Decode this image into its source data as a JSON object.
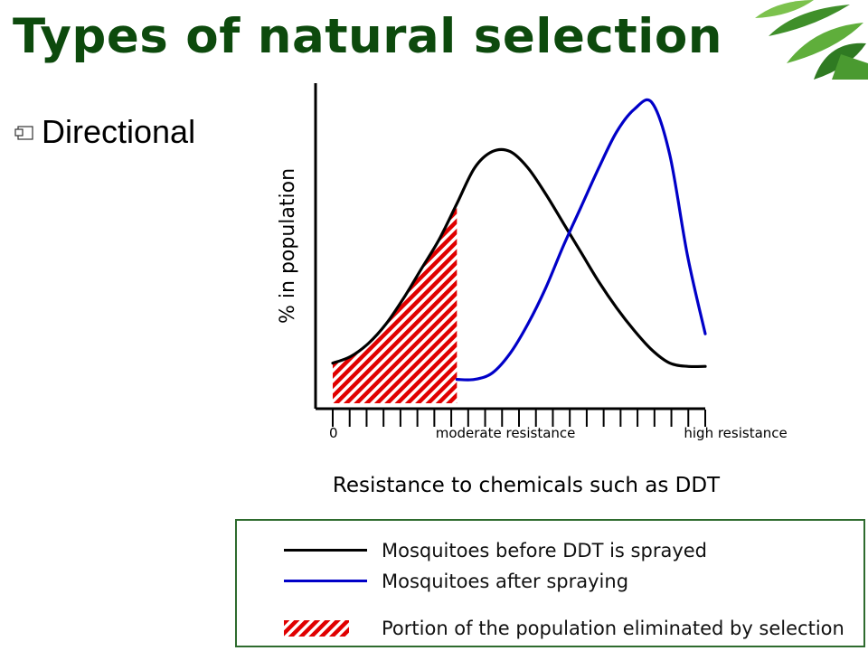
{
  "slide": {
    "title": "Types of natural selection",
    "bullet": "Directional"
  },
  "chart_data": {
    "type": "line",
    "ylabel": "% in population",
    "xlabel": "Resistance to chemicals such as DDT",
    "x_tick_labels": [
      {
        "position": 0,
        "label": "0"
      },
      {
        "position": 6,
        "label": "moderate resistance"
      },
      {
        "position": 20,
        "label": "high resistance"
      }
    ],
    "xlim": [
      0,
      21
    ],
    "ylim": [
      0,
      100
    ],
    "x_ticks": 23,
    "grid": false,
    "series": [
      {
        "name": "Mosquitoes before DDT is sprayed",
        "color": "#000000",
        "x": [
          0,
          1,
          2,
          3,
          4,
          5,
          6,
          7,
          8,
          9,
          10,
          11,
          12,
          13,
          14,
          15,
          16,
          17,
          18,
          19,
          20,
          21
        ],
        "values": [
          14,
          16,
          20,
          26,
          34,
          43,
          52,
          63,
          74,
          79,
          79,
          74,
          66,
          57,
          48,
          39,
          31,
          24,
          18,
          14,
          13,
          13
        ]
      },
      {
        "name": "Mosquitoes after spraying",
        "color": "#0000c8",
        "x": [
          7,
          8,
          9,
          10,
          11,
          12,
          13,
          14,
          15,
          16,
          17,
          18,
          19,
          20,
          21
        ],
        "values": [
          9,
          9,
          11,
          17,
          26,
          37,
          50,
          62,
          74,
          85,
          92,
          94,
          78,
          47,
          23
        ]
      }
    ],
    "shaded_region": {
      "label": "Portion of the population eliminated by selection",
      "x_range": [
        0,
        7
      ],
      "color": "#e00000"
    },
    "legend": {
      "position": "bottom",
      "entries": [
        {
          "label": "Mosquitoes before DDT is sprayed",
          "kind": "line",
          "color": "#000000"
        },
        {
          "label": "Mosquitoes after spraying",
          "kind": "line",
          "color": "#0000c8"
        },
        {
          "label": "Portion of the population eliminated by selection",
          "kind": "hatch",
          "color": "#e00000"
        }
      ]
    }
  }
}
